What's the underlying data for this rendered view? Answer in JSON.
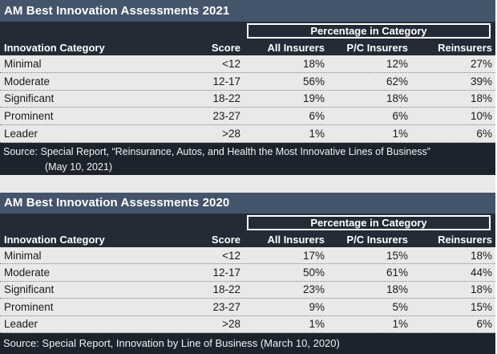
{
  "chart_data": [
    {
      "type": "table",
      "title": "AM Best Innovation Assessments 2021",
      "group_header": "Percentage in Category",
      "columns": [
        "Innovation Category",
        "Score",
        "All Insurers",
        "P/C Insurers",
        "Reinsurers"
      ],
      "rows": [
        [
          "Minimal",
          "<12",
          "18%",
          "12%",
          "27%"
        ],
        [
          "Moderate",
          "12-17",
          "56%",
          "62%",
          "39%"
        ],
        [
          "Significant",
          "18-22",
          "19%",
          "18%",
          "18%"
        ],
        [
          "Prominent",
          "23-27",
          "6%",
          "6%",
          "10%"
        ],
        [
          "Leader",
          ">28",
          "1%",
          "1%",
          "6%"
        ]
      ],
      "source_lines": [
        "Source: Special Report, “Reinsurance, Autos, and Health the Most Innovative Lines of Business”",
        "(May 10, 2021)"
      ]
    },
    {
      "type": "table",
      "title": "AM Best Innovation Assessments 2020",
      "group_header": "Percentage in Category",
      "columns": [
        "Innovation Category",
        "Score",
        "All Insurers",
        "P/C Insurers",
        "Reinsurers"
      ],
      "rows": [
        [
          "Minimal",
          "<12",
          "17%",
          "15%",
          "18%"
        ],
        [
          "Moderate",
          "12-17",
          "50%",
          "61%",
          "44%"
        ],
        [
          "Significant",
          "18-22",
          "23%",
          "18%",
          "18%"
        ],
        [
          "Prominent",
          "23-27",
          "9%",
          "5%",
          "15%"
        ],
        [
          "Leader",
          ">28",
          "1%",
          "1%",
          "6%"
        ]
      ],
      "source_lines": [
        "Source: Special Report, Innovation by Line of Business (March 10, 2020)"
      ]
    }
  ],
  "colors": {
    "title_bar": "#44546A",
    "header_bar": "#222B36",
    "source_bar": "#1C232D",
    "row_background": "#E9E9E9",
    "row_text": "#1A1A1A",
    "group_box_border": "#FFFFFF",
    "gap_background": "#EAEAEA"
  }
}
